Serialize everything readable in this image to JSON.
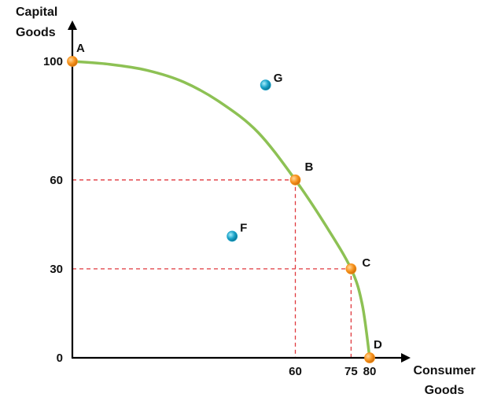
{
  "chart_data": {
    "type": "scatter",
    "title": "",
    "ylabel": [
      "Capital",
      "Goods"
    ],
    "xlabel": [
      "Consumer",
      "Goods"
    ],
    "x_ticks": [
      "60",
      "75",
      "80"
    ],
    "y_ticks": [
      "0",
      "30",
      "60",
      "100"
    ],
    "xlim": [
      0,
      80
    ],
    "ylim": [
      0,
      100
    ],
    "curve": {
      "name": "",
      "color": "#8dc154",
      "points": [
        [
          0,
          100
        ],
        [
          10,
          99
        ],
        [
          20,
          97
        ],
        [
          30,
          93
        ],
        [
          40,
          86
        ],
        [
          50,
          76
        ],
        [
          60,
          60
        ],
        [
          68,
          45
        ],
        [
          75,
          30
        ],
        [
          78,
          18
        ],
        [
          80,
          0
        ]
      ]
    },
    "frontier_points": [
      {
        "label": "A",
        "x": 0,
        "y": 100,
        "color": "#f7931e"
      },
      {
        "label": "B",
        "x": 60,
        "y": 60,
        "color": "#f7931e"
      },
      {
        "label": "C",
        "x": 75,
        "y": 30,
        "color": "#f7931e"
      },
      {
        "label": "D",
        "x": 80,
        "y": 0,
        "color": "#f7931e"
      }
    ],
    "other_points": [
      {
        "label": "G",
        "x": 52,
        "y": 92,
        "color": "#1aa3c9"
      },
      {
        "label": "F",
        "x": 43,
        "y": 41,
        "color": "#1aa3c9"
      }
    ],
    "guide_color": "#e0393e",
    "guides": [
      {
        "x": 60,
        "y": 60
      },
      {
        "x": 75,
        "y": 30
      }
    ]
  }
}
